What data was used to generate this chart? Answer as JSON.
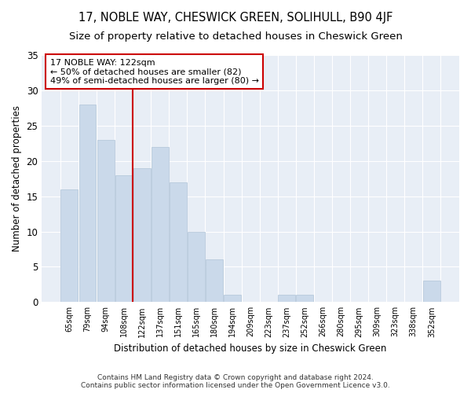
{
  "title": "17, NOBLE WAY, CHESWICK GREEN, SOLIHULL, B90 4JF",
  "subtitle": "Size of property relative to detached houses in Cheswick Green",
  "xlabel": "Distribution of detached houses by size in Cheswick Green",
  "ylabel": "Number of detached properties",
  "categories": [
    "65sqm",
    "79sqm",
    "94sqm",
    "108sqm",
    "122sqm",
    "137sqm",
    "151sqm",
    "165sqm",
    "180sqm",
    "194sqm",
    "209sqm",
    "223sqm",
    "237sqm",
    "252sqm",
    "266sqm",
    "280sqm",
    "295sqm",
    "309sqm",
    "323sqm",
    "338sqm",
    "352sqm"
  ],
  "values": [
    16,
    28,
    23,
    18,
    19,
    22,
    17,
    10,
    6,
    1,
    0,
    0,
    1,
    1,
    0,
    0,
    0,
    0,
    0,
    0,
    3
  ],
  "bar_color": "#cad9ea",
  "bar_edge_color": "#b0c4d8",
  "vline_index": 4,
  "vline_color": "#cc0000",
  "annotation_box_color": "#cc0000",
  "annotation_line1": "17 NOBLE WAY: 122sqm",
  "annotation_line2": "← 50% of detached houses are smaller (82)",
  "annotation_line3": "49% of semi-detached houses are larger (80) →",
  "annotation_fontsize": 8,
  "ylim": [
    0,
    35
  ],
  "yticks": [
    0,
    5,
    10,
    15,
    20,
    25,
    30,
    35
  ],
  "background_color": "#e8eef6",
  "footer": "Contains HM Land Registry data © Crown copyright and database right 2024.\nContains public sector information licensed under the Open Government Licence v3.0.",
  "title_fontsize": 10.5,
  "subtitle_fontsize": 9.5,
  "xlabel_fontsize": 8.5,
  "ylabel_fontsize": 8.5
}
